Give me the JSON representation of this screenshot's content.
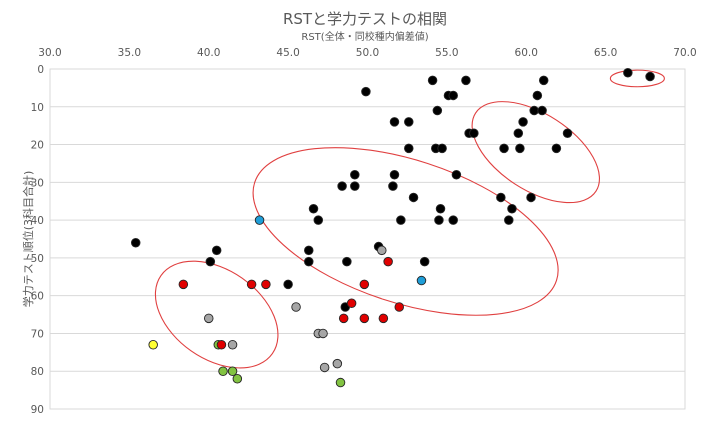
{
  "chart_data": {
    "type": "scatter",
    "title": "RSTと学力テストの相関",
    "subtitle": "RST(全体・同校種内偏差値)",
    "ylabel": "学力テスト順位(3科目合計)",
    "xlabel": "",
    "xlim": [
      30,
      70
    ],
    "ylim": [
      0,
      90
    ],
    "y_inverted": true,
    "x_axis_position": "top",
    "x_ticks": [
      "30.0",
      "35.0",
      "40.0",
      "45.0",
      "50.0",
      "55.0",
      "60.0",
      "65.0",
      "70.0"
    ],
    "y_ticks": [
      "0",
      "10",
      "20",
      "30",
      "40",
      "50",
      "60",
      "70",
      "80",
      "90"
    ],
    "grid": "horizontal",
    "colors": {
      "black": "#000000",
      "gray": "#a6a6a6",
      "red": "#e00000",
      "blue": "#1f9ed8",
      "green": "#82c341",
      "yellow": "#ffff33",
      "ellipse": "#e04040"
    },
    "points": [
      {
        "x": 35.4,
        "y": 46,
        "color": "black"
      },
      {
        "x": 38.4,
        "y": 57,
        "color": "red"
      },
      {
        "x": 36.5,
        "y": 73,
        "color": "yellow"
      },
      {
        "x": 40.1,
        "y": 51,
        "color": "black"
      },
      {
        "x": 40.5,
        "y": 48,
        "color": "black"
      },
      {
        "x": 40.0,
        "y": 66,
        "color": "gray"
      },
      {
        "x": 40.6,
        "y": 73,
        "color": "green"
      },
      {
        "x": 40.8,
        "y": 73,
        "color": "red"
      },
      {
        "x": 41.5,
        "y": 73,
        "color": "gray"
      },
      {
        "x": 40.9,
        "y": 80,
        "color": "green"
      },
      {
        "x": 41.5,
        "y": 80,
        "color": "green"
      },
      {
        "x": 41.8,
        "y": 82,
        "color": "green"
      },
      {
        "x": 42.7,
        "y": 57,
        "color": "red"
      },
      {
        "x": 43.6,
        "y": 57,
        "color": "red"
      },
      {
        "x": 43.2,
        "y": 40,
        "color": "blue"
      },
      {
        "x": 45.0,
        "y": 57,
        "color": "black"
      },
      {
        "x": 45.5,
        "y": 63,
        "color": "gray"
      },
      {
        "x": 46.3,
        "y": 48,
        "color": "black"
      },
      {
        "x": 46.3,
        "y": 51,
        "color": "black"
      },
      {
        "x": 46.6,
        "y": 37,
        "color": "black"
      },
      {
        "x": 46.9,
        "y": 40,
        "color": "black"
      },
      {
        "x": 46.9,
        "y": 70,
        "color": "gray"
      },
      {
        "x": 47.2,
        "y": 70,
        "color": "gray"
      },
      {
        "x": 47.3,
        "y": 79,
        "color": "gray"
      },
      {
        "x": 48.1,
        "y": 78,
        "color": "gray"
      },
      {
        "x": 48.3,
        "y": 83,
        "color": "green"
      },
      {
        "x": 48.4,
        "y": 31,
        "color": "black"
      },
      {
        "x": 48.5,
        "y": 66,
        "color": "red"
      },
      {
        "x": 48.6,
        "y": 63,
        "color": "black"
      },
      {
        "x": 48.7,
        "y": 51,
        "color": "black"
      },
      {
        "x": 49.0,
        "y": 62,
        "color": "red"
      },
      {
        "x": 49.2,
        "y": 28,
        "color": "black"
      },
      {
        "x": 49.2,
        "y": 31,
        "color": "black"
      },
      {
        "x": 49.8,
        "y": 57,
        "color": "red"
      },
      {
        "x": 49.8,
        "y": 66,
        "color": "red"
      },
      {
        "x": 49.9,
        "y": 6,
        "color": "black"
      },
      {
        "x": 50.7,
        "y": 47,
        "color": "black"
      },
      {
        "x": 50.9,
        "y": 48,
        "color": "gray"
      },
      {
        "x": 51.0,
        "y": 66,
        "color": "red"
      },
      {
        "x": 51.3,
        "y": 51,
        "color": "red"
      },
      {
        "x": 51.6,
        "y": 31,
        "color": "black"
      },
      {
        "x": 51.7,
        "y": 14,
        "color": "black"
      },
      {
        "x": 51.7,
        "y": 28,
        "color": "black"
      },
      {
        "x": 52.0,
        "y": 63,
        "color": "red"
      },
      {
        "x": 52.1,
        "y": 40,
        "color": "black"
      },
      {
        "x": 52.6,
        "y": 14,
        "color": "black"
      },
      {
        "x": 52.6,
        "y": 21,
        "color": "black"
      },
      {
        "x": 52.9,
        "y": 34,
        "color": "black"
      },
      {
        "x": 53.4,
        "y": 56,
        "color": "blue"
      },
      {
        "x": 53.6,
        "y": 51,
        "color": "black"
      },
      {
        "x": 54.1,
        "y": 3,
        "color": "black"
      },
      {
        "x": 54.3,
        "y": 21,
        "color": "black"
      },
      {
        "x": 54.4,
        "y": 11,
        "color": "black"
      },
      {
        "x": 54.5,
        "y": 40,
        "color": "black"
      },
      {
        "x": 54.6,
        "y": 37,
        "color": "black"
      },
      {
        "x": 54.7,
        "y": 21,
        "color": "black"
      },
      {
        "x": 55.1,
        "y": 7,
        "color": "black"
      },
      {
        "x": 55.4,
        "y": 7,
        "color": "black"
      },
      {
        "x": 55.4,
        "y": 40,
        "color": "black"
      },
      {
        "x": 55.6,
        "y": 28,
        "color": "black"
      },
      {
        "x": 56.2,
        "y": 3,
        "color": "black"
      },
      {
        "x": 56.4,
        "y": 17,
        "color": "black"
      },
      {
        "x": 56.7,
        "y": 17,
        "color": "black"
      },
      {
        "x": 58.4,
        "y": 34,
        "color": "black"
      },
      {
        "x": 58.6,
        "y": 21,
        "color": "black"
      },
      {
        "x": 58.9,
        "y": 40,
        "color": "black"
      },
      {
        "x": 59.1,
        "y": 37,
        "color": "black"
      },
      {
        "x": 59.5,
        "y": 17,
        "color": "black"
      },
      {
        "x": 59.6,
        "y": 21,
        "color": "black"
      },
      {
        "x": 59.8,
        "y": 14,
        "color": "black"
      },
      {
        "x": 60.3,
        "y": 34,
        "color": "black"
      },
      {
        "x": 60.5,
        "y": 11,
        "color": "black"
      },
      {
        "x": 60.7,
        "y": 7,
        "color": "black"
      },
      {
        "x": 61.0,
        "y": 11,
        "color": "black"
      },
      {
        "x": 61.1,
        "y": 3,
        "color": "black"
      },
      {
        "x": 61.9,
        "y": 21,
        "color": "black"
      },
      {
        "x": 62.6,
        "y": 17,
        "color": "black"
      },
      {
        "x": 66.4,
        "y": 1,
        "color": "black"
      },
      {
        "x": 67.8,
        "y": 2,
        "color": "black"
      }
    ],
    "annotations": [
      {
        "kind": "ellipse",
        "cx": 40.5,
        "cy": 65,
        "rx": 2.8,
        "ry": 18,
        "angle": -55
      },
      {
        "kind": "ellipse",
        "cx": 52.4,
        "cy": 43,
        "rx": 4.5,
        "ry": 42,
        "angle": -72
      },
      {
        "kind": "ellipse",
        "cx": 60.6,
        "cy": 22,
        "rx": 2.4,
        "ry": 19,
        "angle": -57
      },
      {
        "kind": "ellipse",
        "cx": 67.0,
        "cy": 2.5,
        "rx": 1.7,
        "ry": 2.2,
        "angle": 0
      }
    ]
  }
}
